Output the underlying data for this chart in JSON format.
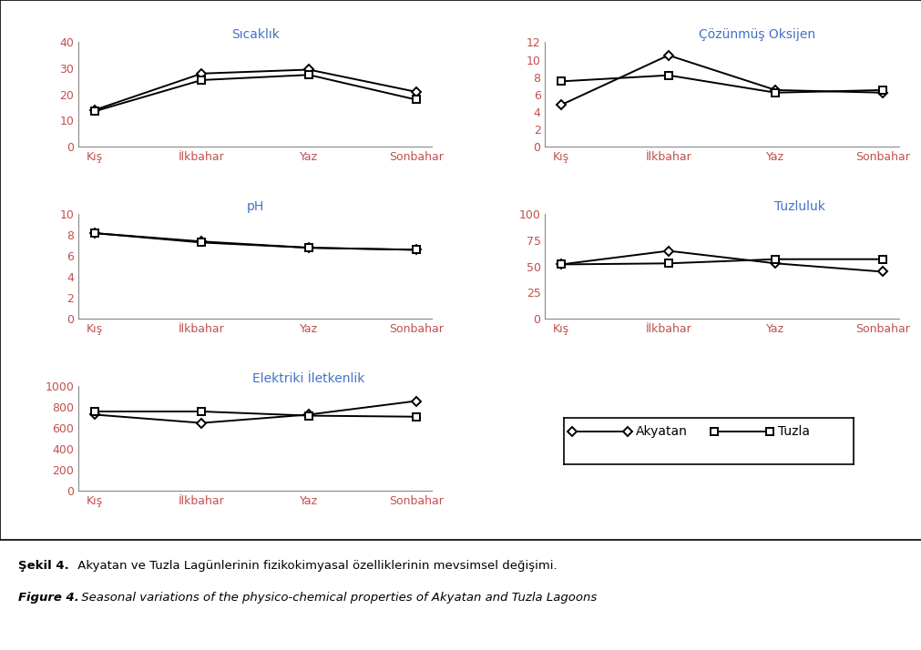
{
  "seasons": [
    "Kış",
    "İlkbahar",
    "Yaz",
    "Sonbahar"
  ],
  "sicaklik": {
    "title": "Sıcaklık",
    "akyatan": [
      14.0,
      28.0,
      29.5,
      21.0
    ],
    "tuzla": [
      13.5,
      25.5,
      27.5,
      18.0
    ],
    "ylim": [
      0,
      40
    ],
    "yticks": [
      0,
      10,
      20,
      30,
      40
    ]
  },
  "cozunmus_oksijen": {
    "title": "Çözünmüş Oksijen",
    "akyatan": [
      4.8,
      10.5,
      6.5,
      6.2
    ],
    "tuzla": [
      7.5,
      8.2,
      6.2,
      6.5
    ],
    "ylim": [
      0,
      12
    ],
    "yticks": [
      0,
      2,
      4,
      6,
      8,
      10,
      12
    ]
  },
  "ph": {
    "title": "pH",
    "akyatan": [
      8.2,
      7.4,
      6.8,
      6.6
    ],
    "tuzla": [
      8.2,
      7.3,
      6.8,
      6.6
    ],
    "ylim": [
      0,
      10
    ],
    "yticks": [
      0,
      2,
      4,
      6,
      8,
      10
    ]
  },
  "tuzluluk": {
    "title": "Tuzluluk",
    "akyatan": [
      52.0,
      65.0,
      53.0,
      45.0
    ],
    "tuzla": [
      52.0,
      53.0,
      57.0,
      57.0
    ],
    "ylim": [
      0,
      100
    ],
    "yticks": [
      0,
      25,
      50,
      75,
      100
    ]
  },
  "elektrik": {
    "title": "Elektriki İletkenlik",
    "akyatan": [
      730,
      650,
      730,
      860
    ],
    "tuzla": [
      760,
      760,
      720,
      710
    ],
    "ylim": [
      0,
      1000
    ],
    "yticks": [
      0,
      200,
      400,
      600,
      800,
      1000
    ]
  },
  "line_color": "#000000",
  "title_color": "#4472C4",
  "axis_tick_color": "#C0504D",
  "background_color": "#FFFFFF",
  "legend_labels": [
    "Akyatan",
    "Tuzla"
  ],
  "caption1_bold": "Şekil 4.",
  "caption1_rest": " Akyatan ve Tuzla Lagünlerinin fizikokimyasal özelliklerinin mevsimsel değişimi.",
  "caption2_bold": "Figure 4.",
  "caption2_rest": " Seasonal variations of the physico-chemical properties of Akyatan and Tuzla Lagoons"
}
